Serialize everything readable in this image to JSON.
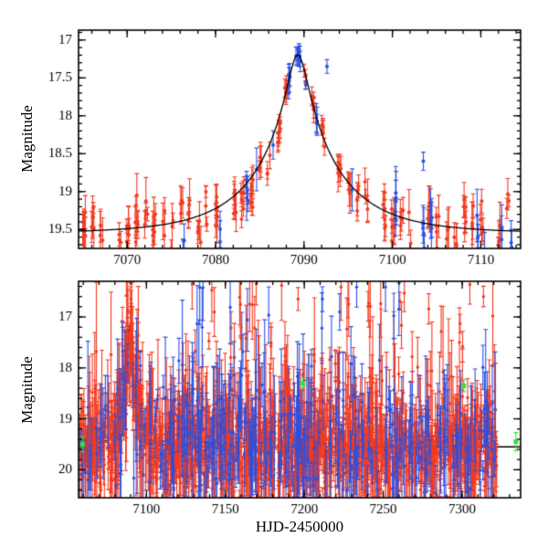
{
  "figure": {
    "background": "#ffffff",
    "frame_color": "#000000"
  },
  "labels": {
    "xlabel": "HJD-2450000",
    "ylabel_top": "Magnitude",
    "ylabel_bottom": "Magnitude"
  },
  "chart_data": [
    {
      "panel": "top",
      "type": "scatter",
      "title": "",
      "xlabel": "",
      "ylabel": "Magnitude",
      "xlim": [
        7064.5,
        7114.5
      ],
      "ylim": [
        16.87,
        19.75
      ],
      "axis_inverted": true,
      "grid": false,
      "xticks": {
        "values": [
          7070,
          7080,
          7090,
          7100,
          7110
        ],
        "labels": [
          "7070",
          "7080",
          "7090",
          "7100",
          "7110"
        ],
        "minor_step": 2
      },
      "yticks": {
        "values": [
          17,
          17.5,
          18,
          18.5,
          19,
          19.5
        ],
        "labels": [
          "17",
          "17.5",
          "18",
          "18.5",
          "19",
          "19.5"
        ],
        "minor_step": 0.1
      },
      "model_curve": {
        "shape": "paczynski-microlensing",
        "t0": 7089.3,
        "tE": 9.5,
        "u0": 0.115,
        "baseline_mag": 19.55,
        "peak_mag": 17.2,
        "color": "#000000"
      },
      "series": [
        {
          "name": "red-points",
          "color": "#f23a20",
          "marker": "dot-errorbar",
          "scatter_spec": {
            "mode": "nightly",
            "seed": 11,
            "x_start": 7065.1,
            "x_end": 7114.4,
            "night_step": 1.0,
            "skip_prob": 0.12,
            "pts_min": 3,
            "pts_max": 8,
            "x_spread": 0.35,
            "night_sigma": 0.07,
            "mag_sigma": 0.09,
            "err_min": 0.05,
            "err_max": 0.22
          }
        },
        {
          "name": "blue-points",
          "color": "#2b50e0",
          "marker": "dot-errorbar",
          "scatter_spec": {
            "mode": "nights",
            "seed": 7,
            "nights": [
              7076.4,
              7080.5,
              7083.6,
              7084.6,
              7086.5,
              7088.3,
              7089.2,
              7089.5,
              7090.3,
              7091.4,
              7095.5,
              7100.4,
              7103.5,
              7104.4,
              7109.6,
              7110.5,
              7112.4,
              7113.5
            ],
            "pts_min": 1,
            "pts_max": 5,
            "x_spread": 0.22,
            "night_sigma": 0.08,
            "mag_sigma": 0.11,
            "err_min": 0.05,
            "err_max": 0.26
          }
        }
      ],
      "notable_points": [
        {
          "series": "blue-points",
          "x": 7092.6,
          "y": 17.35,
          "err": 0.09
        },
        {
          "series": "blue-points",
          "x": 7103.5,
          "y": 18.6,
          "err": 0.12
        }
      ]
    },
    {
      "panel": "bottom",
      "type": "scatter",
      "title": "",
      "xlabel": "HJD-2450000",
      "ylabel": "Magnitude",
      "xlim": [
        7057,
        7337
      ],
      "ylim": [
        16.3,
        20.55
      ],
      "axis_inverted": true,
      "grid": false,
      "xticks": {
        "values": [
          7100,
          7150,
          7200,
          7250,
          7300
        ],
        "labels": [
          "7100",
          "7150",
          "7200",
          "7250",
          "7300"
        ],
        "minor_step": 10
      },
      "yticks": {
        "values": [
          17,
          18,
          19,
          20
        ],
        "labels": [
          "17",
          "18",
          "19",
          "20"
        ],
        "minor_step": 0.2
      },
      "model_curve": {
        "shape": "paczynski-microlensing",
        "t0": 7089.3,
        "tE": 9.5,
        "u0": 0.115,
        "baseline_mag": 19.55,
        "peak_mag": 17.2,
        "color": "#000000"
      },
      "series": [
        {
          "name": "red-points",
          "color": "#f23a20",
          "marker": "dot-errorbar",
          "scatter_spec": {
            "mode": "uniform",
            "seed": 23,
            "n": 1500,
            "segments": [
              {
                "x0": 7057.5,
                "x1": 7085,
                "frac": 0.1
              },
              {
                "x0": 7085,
                "x1": 7322,
                "frac": 0.9
              }
            ],
            "mag_sigma": 0.26,
            "err_base": 0.1,
            "err_spread": 0.4
          }
        },
        {
          "name": "blue-points",
          "color": "#2b50e0",
          "marker": "dot-errorbar",
          "scatter_spec": {
            "mode": "uniform",
            "seed": 31,
            "n": 380,
            "segments": [
              {
                "x0": 7057.5,
                "x1": 7085,
                "frac": 0.1
              },
              {
                "x0": 7085,
                "x1": 7322,
                "frac": 0.9
              }
            ],
            "mag_sigma": 0.4,
            "err_base": 0.14,
            "err_spread": 0.55
          }
        },
        {
          "name": "red-outliers",
          "color": "#f23a20",
          "marker": "dot-errorbar",
          "scatter_spec": {
            "mode": "outliers",
            "seed": 41,
            "n": 55,
            "x_min": 7125,
            "x_max": 7315,
            "mag_min": 16.35,
            "mag_max": 18.6,
            "err_min": 0.15,
            "err_max": 0.7
          }
        },
        {
          "name": "blue-outliers",
          "color": "#2b50e0",
          "marker": "dot-errorbar",
          "scatter_spec": {
            "mode": "outliers",
            "seed": 43,
            "n": 28,
            "x_min": 7128,
            "x_max": 7260,
            "mag_min": 16.35,
            "mag_max": 19.0,
            "err_min": 0.2,
            "err_max": 0.8
          }
        },
        {
          "name": "green-points",
          "color": "#35e03a",
          "marker": "square-errorbar",
          "points": [
            [
              7059.5,
              19.5,
              0.15
            ],
            [
              7199.0,
              18.3,
              0.1
            ],
            [
              7301.0,
              18.35,
              0.12
            ],
            [
              7334.0,
              19.45,
              0.18
            ]
          ]
        }
      ]
    }
  ]
}
